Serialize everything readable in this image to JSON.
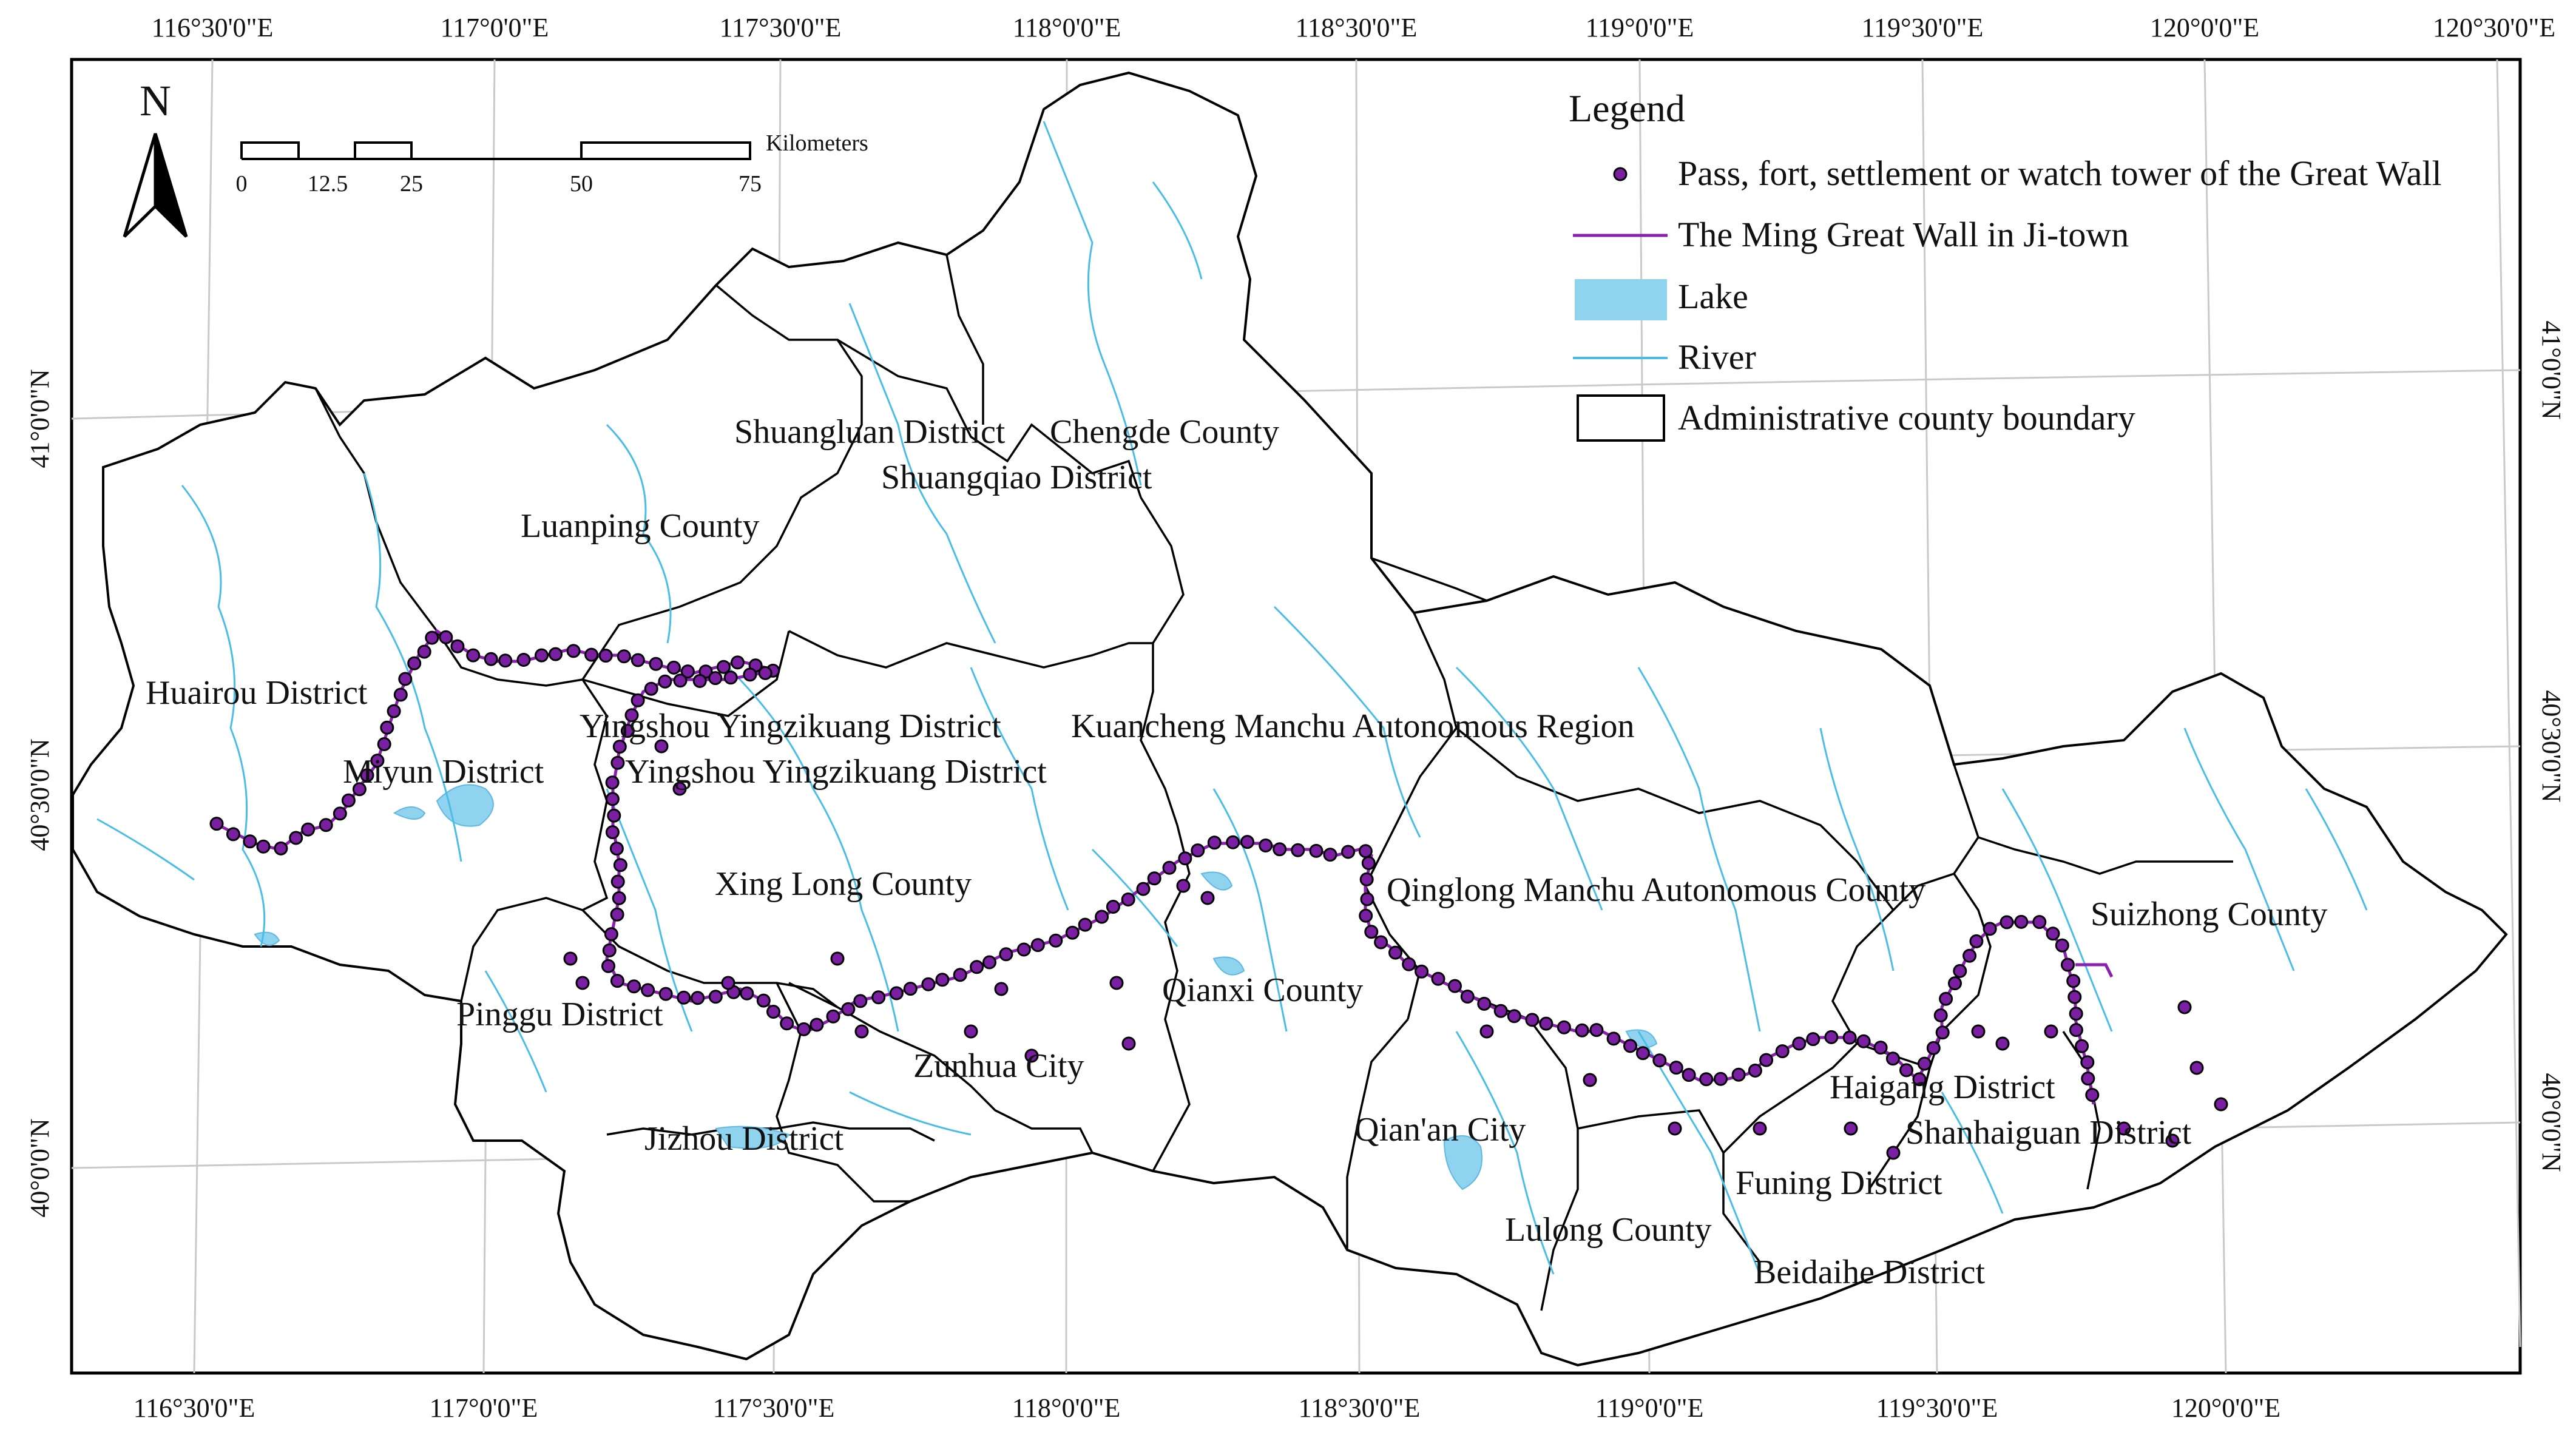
{
  "map": {
    "top_longitudes": [
      "116°30'0\"E",
      "117°0'0\"E",
      "117°30'0\"E",
      "118°0'0\"E",
      "118°30'0\"E",
      "119°0'0\"E",
      "119°30'0\"E",
      "120°0'0\"E",
      "120°30'0\"E"
    ],
    "bottom_longitudes": [
      "116°30'0\"E",
      "117°0'0\"E",
      "117°30'0\"E",
      "118°0'0\"E",
      "118°30'0\"E",
      "119°0'0\"E",
      "119°30'0\"E",
      "120°0'0\"E"
    ],
    "left_latitudes": [
      "41°0'0\"N",
      "40°30'0\"N",
      "40°0'0\"N"
    ],
    "right_latitudes": [
      "41°0'0\"N",
      "40°30'0\"N",
      "40°0'0\"N"
    ],
    "north_label": "N",
    "scale": {
      "unit": "Kilometers",
      "ticks": [
        "0",
        "12.5",
        "25",
        "50",
        "75"
      ]
    },
    "legend": {
      "title": "Legend",
      "items": [
        {
          "label": "Pass, fort, settlement or watch tower of the Great Wall",
          "symbol": "point",
          "color": "#7a1fa2"
        },
        {
          "label": "The Ming Great Wall in Ji-town",
          "symbol": "line",
          "color": "#8b1fb0"
        },
        {
          "label": "Lake",
          "symbol": "fill",
          "color": "#8fd3ef"
        },
        {
          "label": "River",
          "symbol": "line",
          "color": "#49bde6"
        },
        {
          "label": "Administrative county boundary",
          "symbol": "box",
          "color": "#000000"
        }
      ]
    },
    "county_labels": [
      "Shuangluan District",
      "Chengde County",
      "Shuangqiao District",
      "Luanping County",
      "Huairou District",
      "Miyun District",
      "Yingshou Yingzikuang District",
      "Kuancheng Manchu Autonomous Region",
      "Yingshou Yingzikuang District",
      "Xing Long County",
      "Qinglong Manchu Autonomous County",
      "Suizhong County",
      "Pinggu District",
      "Qianxi County",
      "Zunhua City",
      "Haigang District",
      "Shanhaiguan District",
      "Jizhou District",
      "Qian'an City",
      "Funing District",
      "Lulong County",
      "Beidaihe District"
    ]
  }
}
